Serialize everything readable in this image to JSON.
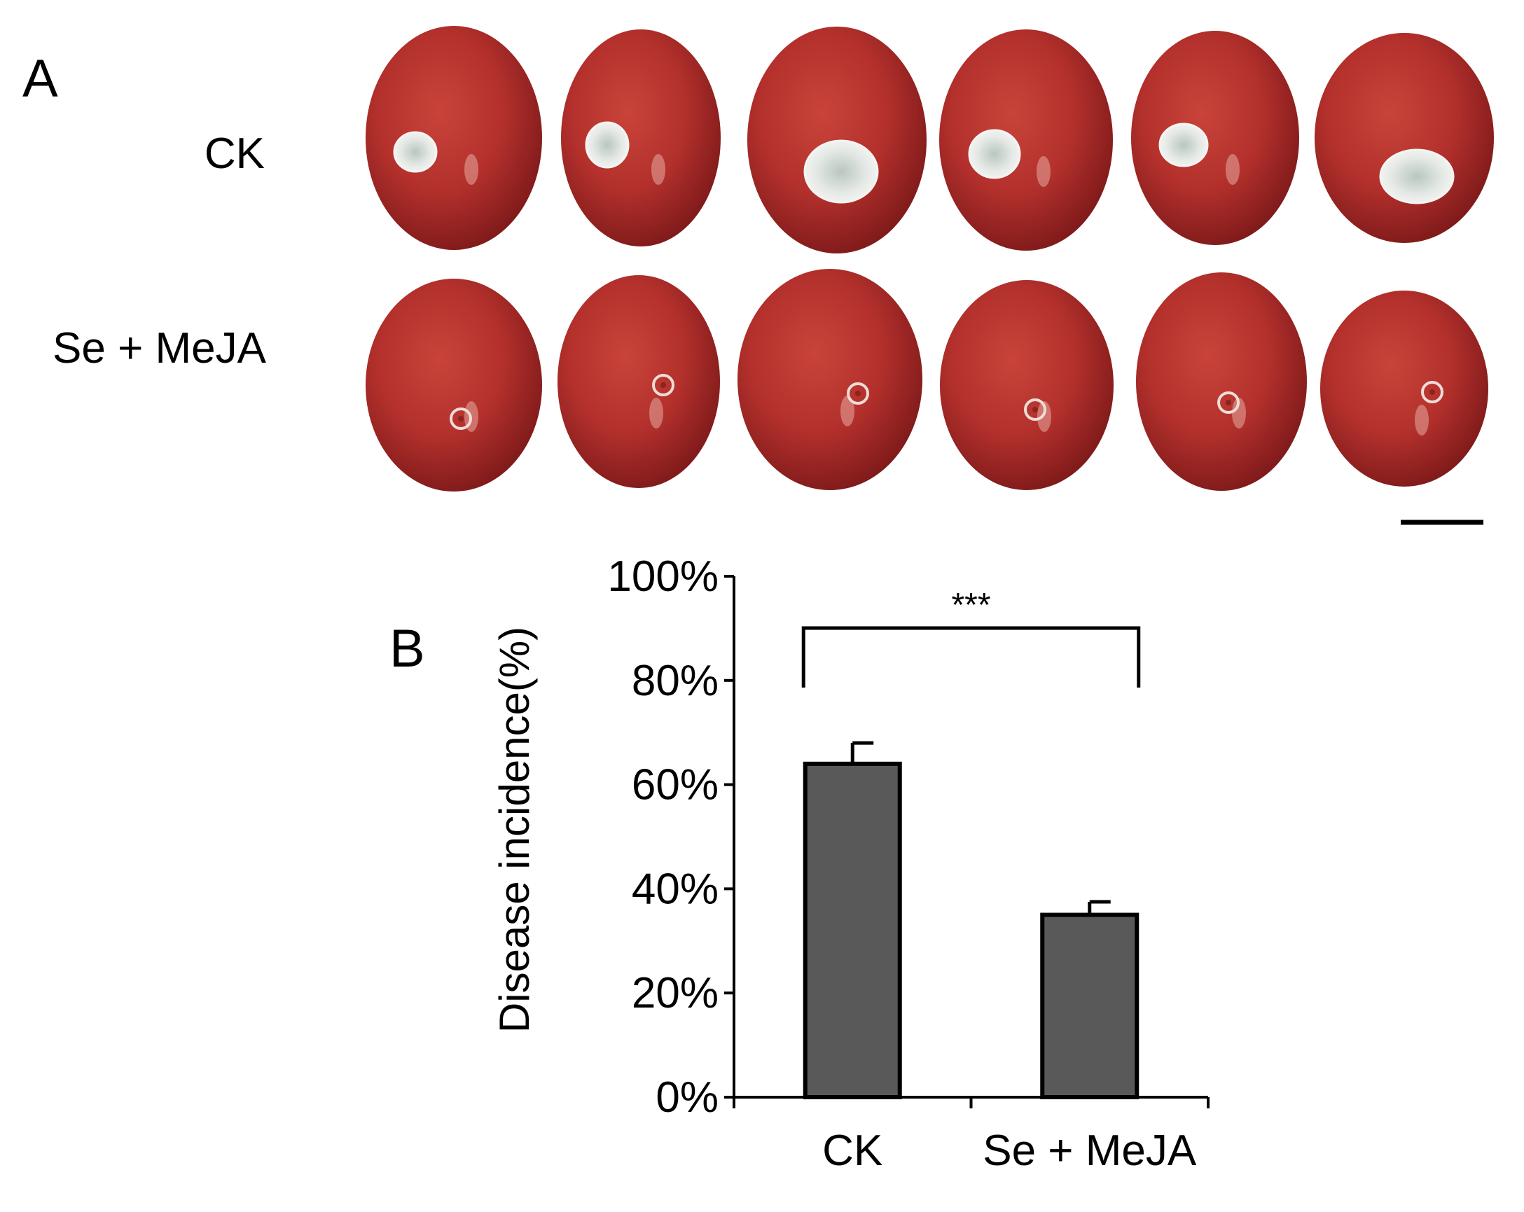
{
  "panel_a": {
    "letter": "A",
    "rows": [
      {
        "label": "CK",
        "fruit_count": 6,
        "lesion": "mycelium"
      },
      {
        "label": "Se + MeJA",
        "fruit_count": 6,
        "lesion": "wound"
      }
    ],
    "colors": {
      "fruit": "#b3302c",
      "fruit_dark": "#7e1a1a",
      "mold": "#e8ece8"
    }
  },
  "panel_b": {
    "letter": "B"
  },
  "chart_data": {
    "type": "bar",
    "title": "",
    "xlabel": "",
    "ylabel": "Disease incidence(%)",
    "categories": [
      "CK",
      "Se + MeJA"
    ],
    "values": [
      0.64,
      0.35
    ],
    "errors": [
      0.04,
      0.025
    ],
    "ylim": [
      0,
      1
    ],
    "yticks": [
      0,
      0.2,
      0.4,
      0.6,
      0.8,
      1.0
    ],
    "ytick_labels": [
      "0%",
      "20%",
      "40%",
      "60%",
      "80%",
      "100%"
    ],
    "significance": {
      "between": [
        "CK",
        "Se + MeJA"
      ],
      "label": "***"
    },
    "bar_color": "#595959",
    "grid": false,
    "legend": "none"
  }
}
